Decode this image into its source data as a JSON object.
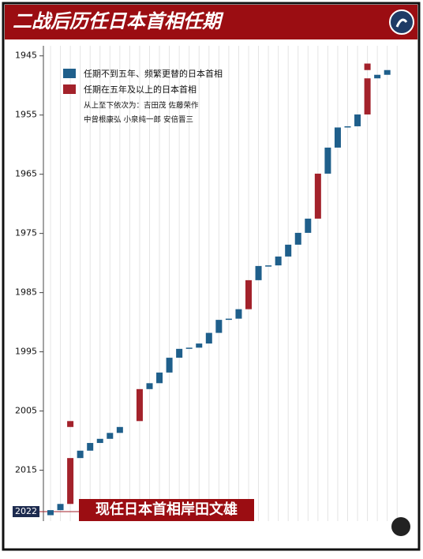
{
  "chart_data": {
    "type": "floating-bar",
    "title": "二战后历任日本首相任期",
    "categories": [
      null,
      null,
      null,
      null,
      null,
      null,
      null,
      null,
      null,
      null,
      null,
      null,
      null,
      null,
      null,
      null,
      null,
      null,
      null,
      null,
      null,
      null,
      null,
      null,
      null,
      null,
      null,
      null,
      null,
      null,
      null,
      null,
      null,
      null,
      null,
      null
    ],
    "series": [
      {
        "name": "任期不到五年、频繁更替的日本首相",
        "color": "#1f5f8b",
        "values": [
          [
            2021.75,
            2022.6
          ],
          [
            2020.7,
            2021.75
          ],
          null,
          [
            2011.7,
            2012.95
          ],
          [
            2010.4,
            2011.7
          ],
          [
            2009.7,
            2010.4
          ],
          [
            2008.7,
            2009.7
          ],
          [
            2007.7,
            2008.7
          ],
          null,
          null,
          [
            2000.3,
            2001.3
          ],
          [
            1998.5,
            2000.3
          ],
          [
            1996.0,
            1998.5
          ],
          [
            1994.5,
            1996.0
          ],
          [
            1994.3,
            1994.5
          ],
          [
            1993.6,
            1994.3
          ],
          [
            1991.8,
            1993.6
          ],
          [
            1989.6,
            1991.8
          ],
          [
            1989.4,
            1989.6
          ],
          [
            1987.8,
            1989.4
          ],
          null,
          [
            1980.5,
            1982.9
          ],
          [
            1980.4,
            1980.6
          ],
          [
            1978.9,
            1980.4
          ],
          [
            1976.9,
            1978.9
          ],
          [
            1974.9,
            1976.9
          ],
          [
            1972.5,
            1974.9
          ],
          null,
          [
            1960.5,
            1964.9
          ],
          [
            1957.1,
            1960.5
          ],
          [
            1956.9,
            1957.1
          ],
          [
            1954.9,
            1956.9
          ],
          null,
          [
            1948.2,
            1948.8
          ],
          [
            1947.4,
            1948.2
          ],
          null
        ]
      },
      {
        "name": "任期在五年及以上的日本首相",
        "color": "#a3222b",
        "values": [
          null,
          null,
          [
            [
              2012.95,
              2020.7
            ],
            [
              2006.7,
              2007.7
            ]
          ],
          null,
          null,
          null,
          null,
          null,
          null,
          [
            [
              2001.3,
              2006.7
            ]
          ],
          null,
          null,
          null,
          null,
          null,
          null,
          null,
          null,
          null,
          null,
          [
            [
              1982.9,
              1987.8
            ]
          ],
          null,
          null,
          null,
          null,
          null,
          null,
          [
            [
              1964.9,
              1972.5
            ]
          ],
          null,
          null,
          null,
          null,
          [
            [
              1948.8,
              1954.9
            ],
            [
              1946.3,
              1947.4
            ]
          ],
          null,
          null,
          null
        ]
      }
    ],
    "note": [
      "从上至下依次为：吉田茂 佐藤荣作",
      "中曾根康弘 小泉纯一郎 安倍晋三"
    ],
    "annotation": "现任日本首相岸田文雄",
    "ylim": [
      1943.3,
      2023.6
    ],
    "y_inverted": true,
    "yticks": [
      1945,
      1955,
      1965,
      1975,
      1985,
      1995,
      2005,
      2015
    ],
    "highlight_tick": 2022
  }
}
